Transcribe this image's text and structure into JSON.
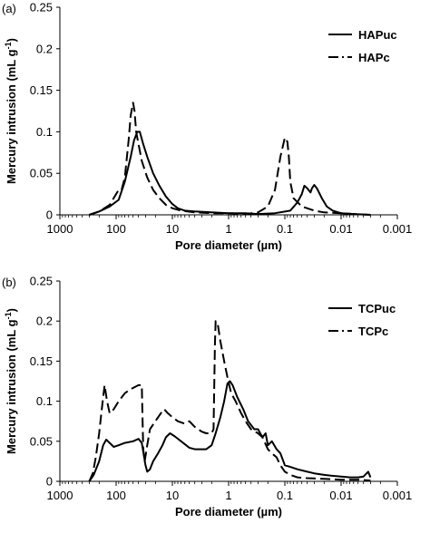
{
  "chart_data": [
    {
      "type": "line",
      "panel_label": "(a)",
      "xlabel": "Pore diameter (µm)",
      "ylabel": "Mercury intrusion (mL g",
      "ylabel_sup": "-1",
      "ylabel_end": ")",
      "x_scale": "log-reversed",
      "xlim": [
        1000,
        0.001
      ],
      "ylim": [
        0,
        0.25
      ],
      "x_ticks": [
        1000,
        100,
        10,
        1,
        0.1,
        0.01,
        0.001
      ],
      "x_tick_labels": [
        "1000",
        "100",
        "10",
        "1",
        "0.1",
        "0.01",
        "0.001"
      ],
      "y_ticks": [
        0,
        0.05,
        0.1,
        0.15,
        0.2,
        0.25
      ],
      "y_tick_labels": [
        "0",
        "0.05",
        "0.1",
        "0.15",
        "0.2",
        "0.25"
      ],
      "legend_position": "top-right",
      "series": [
        {
          "name": "HAPuc",
          "style": "solid",
          "points": [
            [
              300,
              0
            ],
            [
              200,
              0.004
            ],
            [
              130,
              0.01
            ],
            [
              90,
              0.018
            ],
            [
              70,
              0.04
            ],
            [
              55,
              0.07
            ],
            [
              48,
              0.09
            ],
            [
              42,
              0.1
            ],
            [
              38,
              0.1
            ],
            [
              33,
              0.085
            ],
            [
              28,
              0.07
            ],
            [
              22,
              0.05
            ],
            [
              17,
              0.035
            ],
            [
              13,
              0.022
            ],
            [
              10,
              0.013
            ],
            [
              8,
              0.008
            ],
            [
              6,
              0.005
            ],
            [
              4,
              0.004
            ],
            [
              2,
              0.003
            ],
            [
              1,
              0.002
            ],
            [
              0.5,
              0.002
            ],
            [
              0.3,
              0.001
            ],
            [
              0.15,
              0.002
            ],
            [
              0.08,
              0.005
            ],
            [
              0.06,
              0.015
            ],
            [
              0.05,
              0.025
            ],
            [
              0.045,
              0.035
            ],
            [
              0.04,
              0.032
            ],
            [
              0.035,
              0.027
            ],
            [
              0.033,
              0.032
            ],
            [
              0.03,
              0.036
            ],
            [
              0.027,
              0.032
            ],
            [
              0.022,
              0.02
            ],
            [
              0.018,
              0.01
            ],
            [
              0.014,
              0.005
            ],
            [
              0.01,
              0.002
            ],
            [
              0.006,
              0.001
            ],
            [
              0.003,
              0
            ]
          ]
        },
        {
          "name": "HAPc",
          "style": "dashed",
          "points": [
            [
              300,
              0
            ],
            [
              200,
              0.004
            ],
            [
              130,
              0.012
            ],
            [
              100,
              0.025
            ],
            [
              90,
              0.03
            ],
            [
              80,
              0.03
            ],
            [
              70,
              0.045
            ],
            [
              60,
              0.09
            ],
            [
              55,
              0.12
            ],
            [
              50,
              0.135
            ],
            [
              47,
              0.125
            ],
            [
              44,
              0.1
            ],
            [
              40,
              0.085
            ],
            [
              35,
              0.065
            ],
            [
              28,
              0.045
            ],
            [
              22,
              0.03
            ],
            [
              17,
              0.02
            ],
            [
              13,
              0.012
            ],
            [
              10,
              0.008
            ],
            [
              7,
              0.005
            ],
            [
              4,
              0.003
            ],
            [
              2,
              0.002
            ],
            [
              1,
              0.002
            ],
            [
              0.5,
              0.001
            ],
            [
              0.3,
              0.003
            ],
            [
              0.2,
              0.01
            ],
            [
              0.15,
              0.03
            ],
            [
              0.12,
              0.07
            ],
            [
              0.1,
              0.093
            ],
            [
              0.09,
              0.088
            ],
            [
              0.085,
              0.07
            ],
            [
              0.08,
              0.04
            ],
            [
              0.07,
              0.02
            ],
            [
              0.05,
              0.01
            ],
            [
              0.03,
              0.005
            ],
            [
              0.02,
              0.003
            ],
            [
              0.01,
              0.002
            ],
            [
              0.006,
              0.001
            ],
            [
              0.003,
              0
            ]
          ]
        }
      ]
    },
    {
      "type": "line",
      "panel_label": "(b)",
      "xlabel": "Pore diameter (µm)",
      "ylabel": "Mercury intrusion (mL g",
      "ylabel_sup": "-1",
      "ylabel_end": ")",
      "x_scale": "log-reversed",
      "xlim": [
        1000,
        0.001
      ],
      "ylim": [
        0,
        0.25
      ],
      "x_ticks": [
        1000,
        100,
        10,
        1,
        0.1,
        0.01,
        0.001
      ],
      "x_tick_labels": [
        "1000",
        "100",
        "10",
        "1",
        "0.1",
        "0.01",
        "0.001"
      ],
      "y_ticks": [
        0,
        0.05,
        0.1,
        0.15,
        0.2,
        0.25
      ],
      "y_tick_labels": [
        "0",
        "0.05",
        "0.1",
        "0.15",
        "0.2",
        "0.25"
      ],
      "legend_position": "top-right",
      "series": [
        {
          "name": "TCPuc",
          "style": "solid",
          "points": [
            [
              300,
              0
            ],
            [
              250,
              0.008
            ],
            [
              200,
              0.025
            ],
            [
              170,
              0.045
            ],
            [
              150,
              0.052
            ],
            [
              130,
              0.048
            ],
            [
              110,
              0.043
            ],
            [
              90,
              0.045
            ],
            [
              70,
              0.048
            ],
            [
              50,
              0.05
            ],
            [
              40,
              0.053
            ],
            [
              35,
              0.048
            ],
            [
              30,
              0.02
            ],
            [
              28,
              0.012
            ],
            [
              25,
              0.015
            ],
            [
              22,
              0.025
            ],
            [
              18,
              0.035
            ],
            [
              15,
              0.045
            ],
            [
              13,
              0.055
            ],
            [
              11,
              0.06
            ],
            [
              9,
              0.056
            ],
            [
              7,
              0.05
            ],
            [
              5,
              0.042
            ],
            [
              4,
              0.04
            ],
            [
              3,
              0.04
            ],
            [
              2.5,
              0.04
            ],
            [
              2,
              0.045
            ],
            [
              1.7,
              0.06
            ],
            [
              1.4,
              0.08
            ],
            [
              1.2,
              0.1
            ],
            [
              1.05,
              0.122
            ],
            [
              0.95,
              0.125
            ],
            [
              0.85,
              0.12
            ],
            [
              0.7,
              0.105
            ],
            [
              0.55,
              0.09
            ],
            [
              0.45,
              0.075
            ],
            [
              0.35,
              0.065
            ],
            [
              0.3,
              0.065
            ],
            [
              0.25,
              0.055
            ],
            [
              0.22,
              0.06
            ],
            [
              0.2,
              0.045
            ],
            [
              0.17,
              0.05
            ],
            [
              0.14,
              0.04
            ],
            [
              0.12,
              0.035
            ],
            [
              0.1,
              0.02
            ],
            [
              0.08,
              0.018
            ],
            [
              0.06,
              0.015
            ],
            [
              0.04,
              0.012
            ],
            [
              0.03,
              0.01
            ],
            [
              0.02,
              0.008
            ],
            [
              0.015,
              0.007
            ],
            [
              0.01,
              0.006
            ],
            [
              0.007,
              0.005
            ],
            [
              0.005,
              0.005
            ],
            [
              0.004,
              0.006
            ],
            [
              0.0033,
              0.012
            ],
            [
              0.003,
              0.005
            ]
          ]
        },
        {
          "name": "TCPc",
          "style": "dashed",
          "points": [
            [
              300,
              0
            ],
            [
              260,
              0.01
            ],
            [
              230,
              0.03
            ],
            [
              200,
              0.06
            ],
            [
              180,
              0.09
            ],
            [
              160,
              0.12
            ],
            [
              145,
              0.1
            ],
            [
              130,
              0.085
            ],
            [
              110,
              0.09
            ],
            [
              90,
              0.1
            ],
            [
              70,
              0.11
            ],
            [
              55,
              0.115
            ],
            [
              40,
              0.12
            ],
            [
              35,
              0.12
            ],
            [
              33,
              0.04
            ],
            [
              31,
              0.025
            ],
            [
              28,
              0.045
            ],
            [
              25,
              0.065
            ],
            [
              20,
              0.075
            ],
            [
              16,
              0.085
            ],
            [
              14,
              0.09
            ],
            [
              12,
              0.085
            ],
            [
              10,
              0.08
            ],
            [
              8,
              0.075
            ],
            [
              6,
              0.072
            ],
            [
              5,
              0.075
            ],
            [
              4,
              0.068
            ],
            [
              3,
              0.062
            ],
            [
              2.5,
              0.06
            ],
            [
              2,
              0.06
            ],
            [
              1.85,
              0.065
            ],
            [
              1.75,
              0.17
            ],
            [
              1.7,
              0.2
            ],
            [
              1.55,
              0.195
            ],
            [
              1.4,
              0.175
            ],
            [
              1.2,
              0.15
            ],
            [
              1.05,
              0.13
            ],
            [
              0.9,
              0.11
            ],
            [
              0.75,
              0.1
            ],
            [
              0.6,
              0.085
            ],
            [
              0.5,
              0.075
            ],
            [
              0.4,
              0.065
            ],
            [
              0.3,
              0.06
            ],
            [
              0.25,
              0.055
            ],
            [
              0.2,
              0.04
            ],
            [
              0.17,
              0.035
            ],
            [
              0.14,
              0.03
            ],
            [
              0.12,
              0.02
            ],
            [
              0.1,
              0.012
            ],
            [
              0.08,
              0.008
            ],
            [
              0.06,
              0.005
            ],
            [
              0.04,
              0.004
            ],
            [
              0.02,
              0.003
            ],
            [
              0.01,
              0.002
            ],
            [
              0.005,
              0.002
            ],
            [
              0.003,
              0.001
            ]
          ]
        }
      ]
    }
  ]
}
